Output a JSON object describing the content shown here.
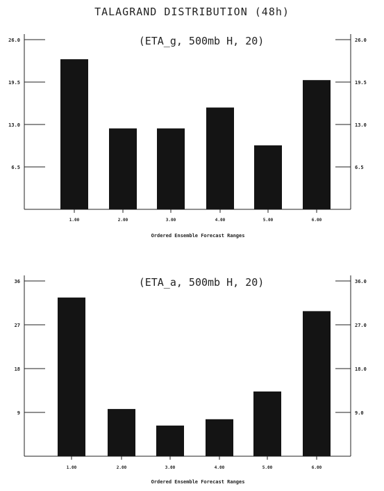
{
  "page": {
    "title": "TALAGRAND DISTRIBUTION (48h)",
    "colors": {
      "bar": "#141414",
      "ink": "#222222",
      "background": "#ffffff"
    }
  },
  "chart_data": [
    {
      "type": "bar",
      "title": "(ETA_g, 500mb H, 20)",
      "xlabel": "Ordered Ensemble Forecast Ranges",
      "categories": [
        "1.00",
        "2.00",
        "3.00",
        "4.00",
        "5.00",
        "6.00"
      ],
      "values": [
        23.0,
        12.4,
        12.4,
        15.6,
        9.8,
        19.8
      ],
      "ylim": [
        0,
        26.0
      ],
      "yticks_left": [
        "26.0",
        "19.5",
        "13.0",
        "6.5"
      ],
      "yticks_right": [
        "26.0",
        "19.5",
        "13.0",
        "6.5"
      ],
      "ytick_values": [
        26.0,
        19.5,
        13.0,
        6.5
      ],
      "legend": "none",
      "grid": false
    },
    {
      "type": "bar",
      "title": "(ETA_a, 500mb H, 20)",
      "xlabel": "Ordered Ensemble Forecast Ranges",
      "categories": [
        "1.00",
        "2.00",
        "3.00",
        "4.00",
        "5.00",
        "6.00"
      ],
      "values": [
        32.6,
        9.7,
        6.3,
        7.6,
        13.3,
        29.8
      ],
      "ylim": [
        0,
        36.0
      ],
      "yticks_left": [
        "36",
        "27",
        "18",
        "9"
      ],
      "yticks_right": [
        "36.0",
        "27.0",
        "18.0",
        "9.0"
      ],
      "ytick_values": [
        36.0,
        27.0,
        18.0,
        9.0
      ],
      "legend": "none",
      "grid": false
    }
  ]
}
